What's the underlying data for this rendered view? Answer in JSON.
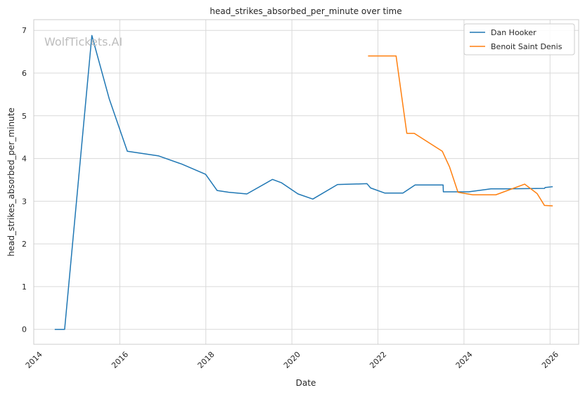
{
  "chart_data": {
    "type": "line",
    "title": "head_strikes_absorbed_per_minute over time",
    "xlabel": "Date",
    "ylabel": "head_strikes_absorbed_per_minute",
    "watermark": "WolfTickets.AI",
    "xlim": [
      "2014-01-01",
      "2026-09-01"
    ],
    "ylim": [
      -0.35,
      7.25
    ],
    "x_ticks": [
      "2014",
      "2016",
      "2018",
      "2020",
      "2022",
      "2024",
      "2026"
    ],
    "y_ticks": [
      0,
      1,
      2,
      3,
      4,
      5,
      6,
      7
    ],
    "grid": true,
    "legend_position": "top-right",
    "series": [
      {
        "name": "Dan Hooker",
        "color": "#1f77b4",
        "points": [
          [
            "2014-06-28",
            0.0
          ],
          [
            "2014-09-20",
            0.0
          ],
          [
            "2015-05-09",
            6.88
          ],
          [
            "2015-10-03",
            5.4
          ],
          [
            "2016-03-05",
            4.17
          ],
          [
            "2016-11-27",
            4.06
          ],
          [
            "2017-06-10",
            3.87
          ],
          [
            "2017-12-30",
            3.63
          ],
          [
            "2018-04-07",
            3.25
          ],
          [
            "2018-07-14",
            3.21
          ],
          [
            "2018-12-15",
            3.17
          ],
          [
            "2019-07-20",
            3.51
          ],
          [
            "2019-10-06",
            3.43
          ],
          [
            "2020-02-22",
            3.17
          ],
          [
            "2020-06-27",
            3.05
          ],
          [
            "2021-01-23",
            3.39
          ],
          [
            "2021-09-30",
            3.41
          ],
          [
            "2021-10-31",
            3.31
          ],
          [
            "2022-03-01",
            3.19
          ],
          [
            "2022-08-01",
            3.19
          ],
          [
            "2022-11-12",
            3.38
          ],
          [
            "2023-07-08",
            3.38
          ],
          [
            "2023-07-10",
            3.22
          ],
          [
            "2024-02-10",
            3.22
          ],
          [
            "2024-08-17",
            3.29
          ],
          [
            "2025-01-01",
            3.29
          ],
          [
            "2025-11-15",
            3.3
          ],
          [
            "2025-11-20",
            3.32
          ],
          [
            "2026-01-24",
            3.34
          ]
        ]
      },
      {
        "name": "Benoit Saint Denis",
        "color": "#ff7f0e",
        "points": [
          [
            "2021-10-09",
            6.4
          ],
          [
            "2022-06-04",
            6.4
          ],
          [
            "2022-09-03",
            4.59
          ],
          [
            "2022-11-05",
            4.59
          ],
          [
            "2023-07-01",
            4.17
          ],
          [
            "2023-09-01",
            3.8
          ],
          [
            "2023-11-11",
            3.21
          ],
          [
            "2024-03-16",
            3.15
          ],
          [
            "2024-09-28",
            3.15
          ],
          [
            "2025-05-31",
            3.4
          ],
          [
            "2025-09-13",
            3.18
          ],
          [
            "2025-11-15",
            2.9
          ],
          [
            "2026-01-24",
            2.89
          ]
        ]
      }
    ]
  }
}
